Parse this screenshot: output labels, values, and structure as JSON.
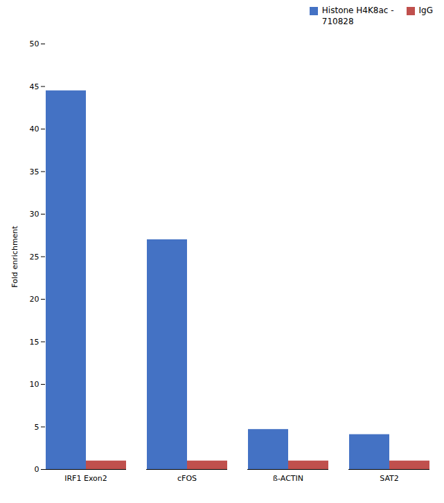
{
  "chart_data": {
    "type": "bar",
    "categories": [
      "IRF1 Exon2",
      "cFOS",
      "ß-ACTIN",
      "SAT2"
    ],
    "series": [
      {
        "name": "Histone H4K8ac -\n710828",
        "color": "#4472C4",
        "values": [
          44.5,
          27.0,
          4.7,
          4.1
        ]
      },
      {
        "name": "IgG",
        "color": "#C0504D",
        "values": [
          1.0,
          1.0,
          1.0,
          1.0
        ]
      }
    ],
    "ylabel": "Fold enrichment",
    "ylim": [
      0,
      50
    ],
    "yticks": [
      0,
      5,
      10,
      15,
      20,
      25,
      30,
      35,
      40,
      45,
      50
    ],
    "grid": false,
    "legend": "upper right"
  }
}
